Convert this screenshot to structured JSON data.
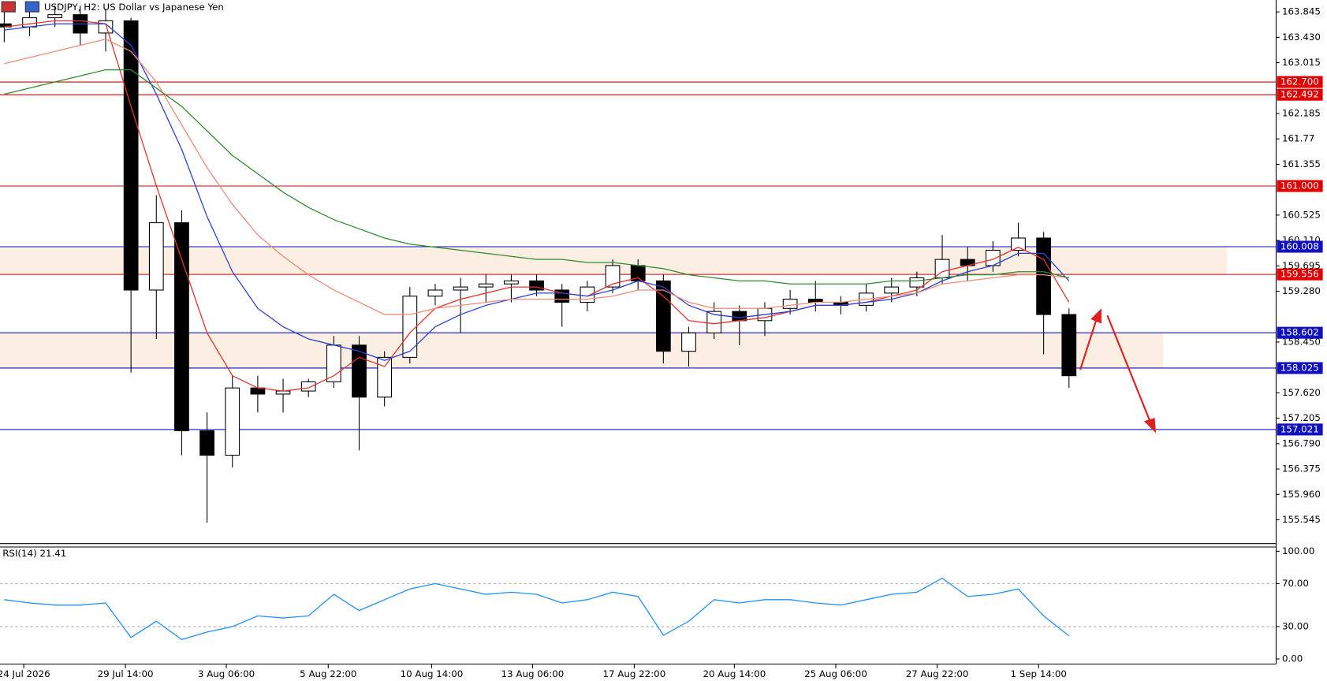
{
  "chart_data": [
    {
      "type": "candlestick",
      "title": "USDJPY, H2:  US Dollar vs Japanese Yen",
      "candles": {
        "open": [
          163.65,
          163.6,
          163.75,
          163.8,
          163.5,
          163.7,
          159.3,
          160.4,
          157.0,
          156.6,
          157.7,
          157.6,
          157.65,
          157.8,
          158.4,
          157.55,
          158.2,
          159.2,
          159.3,
          159.35,
          159.4,
          159.45,
          159.3,
          159.1,
          159.35,
          159.7,
          159.45,
          158.3,
          158.6,
          158.95,
          158.8,
          159.0,
          159.15,
          159.1,
          159.05,
          159.25,
          159.35,
          159.5,
          159.8,
          159.7,
          159.95,
          160.15,
          158.9
        ],
        "high": [
          163.85,
          163.9,
          163.95,
          163.95,
          163.9,
          163.75,
          160.85,
          160.6,
          157.3,
          157.9,
          157.9,
          157.85,
          157.85,
          158.55,
          158.55,
          158.3,
          159.35,
          159.4,
          159.5,
          159.55,
          159.55,
          159.55,
          159.4,
          159.45,
          159.8,
          159.8,
          159.55,
          158.7,
          159.1,
          159.05,
          159.1,
          159.3,
          159.45,
          159.2,
          159.4,
          159.5,
          159.6,
          160.2,
          160.0,
          160.1,
          160.4,
          160.25,
          159.0
        ],
        "low": [
          163.35,
          163.45,
          163.6,
          163.3,
          163.2,
          157.95,
          158.5,
          156.6,
          155.5,
          156.4,
          157.3,
          157.3,
          157.55,
          157.7,
          156.68,
          157.4,
          158.1,
          159.05,
          158.6,
          159.1,
          159.1,
          159.2,
          158.7,
          158.95,
          159.25,
          159.3,
          158.1,
          158.05,
          158.5,
          158.4,
          158.55,
          158.9,
          158.95,
          158.9,
          158.95,
          159.1,
          159.2,
          159.4,
          159.45,
          159.6,
          159.85,
          158.25,
          157.7
        ],
        "close": [
          163.6,
          163.75,
          163.8,
          163.5,
          163.7,
          159.3,
          160.4,
          157.0,
          156.6,
          157.7,
          157.6,
          157.65,
          157.8,
          158.4,
          157.55,
          158.2,
          159.2,
          159.3,
          159.35,
          159.4,
          159.45,
          159.3,
          159.1,
          159.35,
          159.7,
          159.45,
          158.3,
          158.6,
          158.95,
          158.8,
          159.0,
          159.15,
          159.1,
          159.05,
          159.25,
          159.35,
          159.5,
          159.8,
          159.7,
          159.95,
          160.15,
          158.9,
          157.9
        ]
      },
      "series": [
        {
          "color": "#e8302a",
          "values": [
            163.6,
            163.65,
            163.7,
            163.7,
            163.65,
            162.3,
            161.0,
            159.8,
            158.6,
            157.9,
            157.7,
            157.65,
            157.7,
            157.9,
            158.2,
            158.05,
            158.6,
            159.0,
            159.15,
            159.25,
            159.35,
            159.35,
            159.25,
            159.2,
            159.4,
            159.5,
            159.2,
            158.8,
            158.75,
            158.8,
            158.85,
            158.95,
            159.05,
            159.05,
            159.1,
            159.2,
            159.3,
            159.6,
            159.7,
            159.8,
            160.0,
            159.8,
            159.1
          ]
        },
        {
          "color": "#2b3fd6",
          "values": [
            163.55,
            163.6,
            163.65,
            163.65,
            163.65,
            163.3,
            162.5,
            161.6,
            160.5,
            159.6,
            159.0,
            158.7,
            158.5,
            158.4,
            158.3,
            158.15,
            158.3,
            158.7,
            158.9,
            159.05,
            159.15,
            159.25,
            159.25,
            159.2,
            159.3,
            159.45,
            159.35,
            159.05,
            158.9,
            158.85,
            158.9,
            158.95,
            159.05,
            159.05,
            159.1,
            159.15,
            159.25,
            159.45,
            159.6,
            159.7,
            159.9,
            159.9,
            159.45
          ]
        },
        {
          "color": "#f08a78",
          "values": [
            163.0,
            163.1,
            163.2,
            163.3,
            163.4,
            163.2,
            162.7,
            162.0,
            161.3,
            160.7,
            160.2,
            159.85,
            159.55,
            159.3,
            159.1,
            158.9,
            158.9,
            159.0,
            159.05,
            159.1,
            159.15,
            159.15,
            159.15,
            159.15,
            159.2,
            159.3,
            159.3,
            159.1,
            159.0,
            159.0,
            159.0,
            159.05,
            159.1,
            159.1,
            159.15,
            159.2,
            159.25,
            159.4,
            159.45,
            159.5,
            159.55,
            159.55,
            159.5
          ]
        },
        {
          "color": "#2e8b2e",
          "values": [
            162.5,
            162.6,
            162.7,
            162.8,
            162.9,
            162.9,
            162.6,
            162.3,
            161.9,
            161.5,
            161.2,
            160.9,
            160.65,
            160.45,
            160.3,
            160.15,
            160.05,
            160.0,
            159.95,
            159.9,
            159.85,
            159.8,
            159.8,
            159.75,
            159.75,
            159.7,
            159.65,
            159.55,
            159.5,
            159.45,
            159.45,
            159.4,
            159.4,
            159.4,
            159.4,
            159.45,
            159.45,
            159.5,
            159.55,
            159.55,
            159.6,
            159.6,
            159.5
          ]
        }
      ],
      "levels": [
        {
          "value": 162.7,
          "label": "162.700",
          "color": "#e00000"
        },
        {
          "value": 162.492,
          "label": "162.492",
          "color": "#e00000"
        },
        {
          "value": 161.0,
          "label": "161.000",
          "color": "#e00000"
        },
        {
          "value": 160.008,
          "label": "160.008",
          "color": "#1010c0"
        },
        {
          "value": 159.556,
          "label": "159.556",
          "color": "#e00000"
        },
        {
          "value": 158.602,
          "label": "158.602",
          "color": "#1010c0"
        },
        {
          "value": 158.025,
          "label": "158.025",
          "color": "#1010c0"
        },
        {
          "value": 157.021,
          "label": "157.021",
          "color": "#1010c0"
        }
      ],
      "zones": [
        {
          "from": 159.556,
          "to": 160.008,
          "color": "#fbeee2"
        },
        {
          "from": 158.025,
          "to": 158.602,
          "color": "#fbeee2"
        }
      ],
      "ylim": [
        155.156,
        164.04
      ],
      "yticks": [
        163.845,
        {
          "value": 163.43,
          "label": "163.430"
        },
        163.015,
        162.185,
        161.77,
        161.355,
        160.525,
        {
          "value": 160.11,
          "label": "160.110"
        },
        159.695,
        {
          "value": 159.28,
          "label": "159.280"
        },
        {
          "value": 158.45,
          "label": "158.450"
        },
        {
          "value": 157.62,
          "label": "157.620"
        },
        157.205,
        {
          "value": 156.79,
          "label": "156.790"
        },
        156.375,
        {
          "value": 155.96,
          "label": "155.960"
        },
        155.545
      ],
      "xlim": [
        -0.167,
        50.17
      ],
      "xticks": [
        {
          "value": 0.77,
          "label": "24 Jul 2026"
        },
        {
          "value": 4.78,
          "label": "29 Jul 14:00"
        },
        {
          "value": 8.76,
          "label": "3 Aug 06:00"
        },
        {
          "value": 12.78,
          "label": "5 Aug 22:00"
        },
        {
          "value": 16.86,
          "label": "10 Aug 14:00"
        },
        {
          "value": 20.84,
          "label": "13 Aug 06:00"
        },
        {
          "value": 24.85,
          "label": "17 Aug 22:00"
        },
        {
          "value": 28.8,
          "label": "20 Aug 14:00"
        },
        {
          "value": 32.8,
          "label": "25 Aug 06:00"
        },
        {
          "value": 36.8,
          "label": "27 Aug 22:00"
        },
        {
          "value": 40.8,
          "label": "1 Sep 14:00"
        }
      ]
    },
    {
      "type": "line",
      "title": "RSI(14) 21.41",
      "color": "#1e90ff",
      "values": [
        55,
        52,
        50,
        50,
        52,
        20,
        35,
        18,
        25,
        30,
        40,
        38,
        40,
        60,
        45,
        55,
        65,
        70,
        65,
        60,
        62,
        60,
        52,
        55,
        62,
        58,
        22,
        35,
        55,
        52,
        55,
        55,
        52,
        50,
        55,
        60,
        62,
        75,
        58,
        60,
        65,
        40,
        21.41
      ],
      "ylim": [
        0,
        100
      ],
      "yticks": [
        {
          "value": 100,
          "label": "100.00"
        },
        {
          "value": 70,
          "label": "70.00"
        },
        {
          "value": 30,
          "label": "30.00"
        },
        {
          "value": 0,
          "label": "0.00"
        }
      ]
    }
  ]
}
